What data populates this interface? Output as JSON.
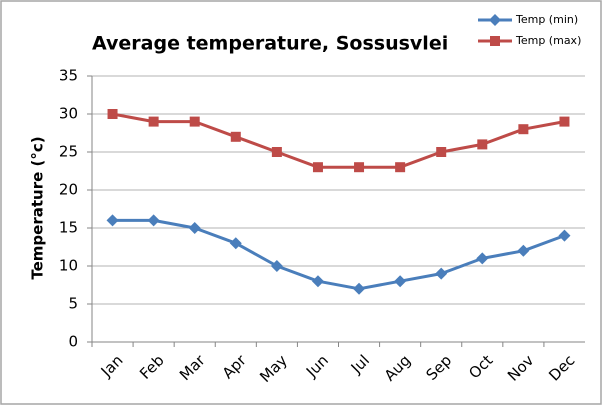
{
  "chart_data": {
    "type": "line",
    "title": "Average temperature, Sossusvlei",
    "y_label": "Temperature (°c)",
    "categories": [
      "Jan",
      "Feb",
      "Mar",
      "Apr",
      "May",
      "Jun",
      "Jul",
      "Aug",
      "Sep",
      "Oct",
      "Nov",
      "Dec"
    ],
    "series": [
      {
        "name": "Temp (min)",
        "color": "#4a7ebb",
        "marker": "diamond",
        "values": [
          16,
          16,
          15,
          13,
          10,
          8,
          7,
          8,
          9,
          11,
          12,
          14
        ]
      },
      {
        "name": "Temp (max)",
        "color": "#be4b48",
        "marker": "square",
        "values": [
          30,
          29,
          29,
          27,
          25,
          23,
          23,
          23,
          25,
          26,
          28,
          29
        ]
      }
    ],
    "ylim": [
      0,
      35
    ],
    "yticks": [
      0,
      5,
      10,
      15,
      20,
      25,
      30,
      35
    ],
    "grid": true,
    "legend": "top-right"
  }
}
